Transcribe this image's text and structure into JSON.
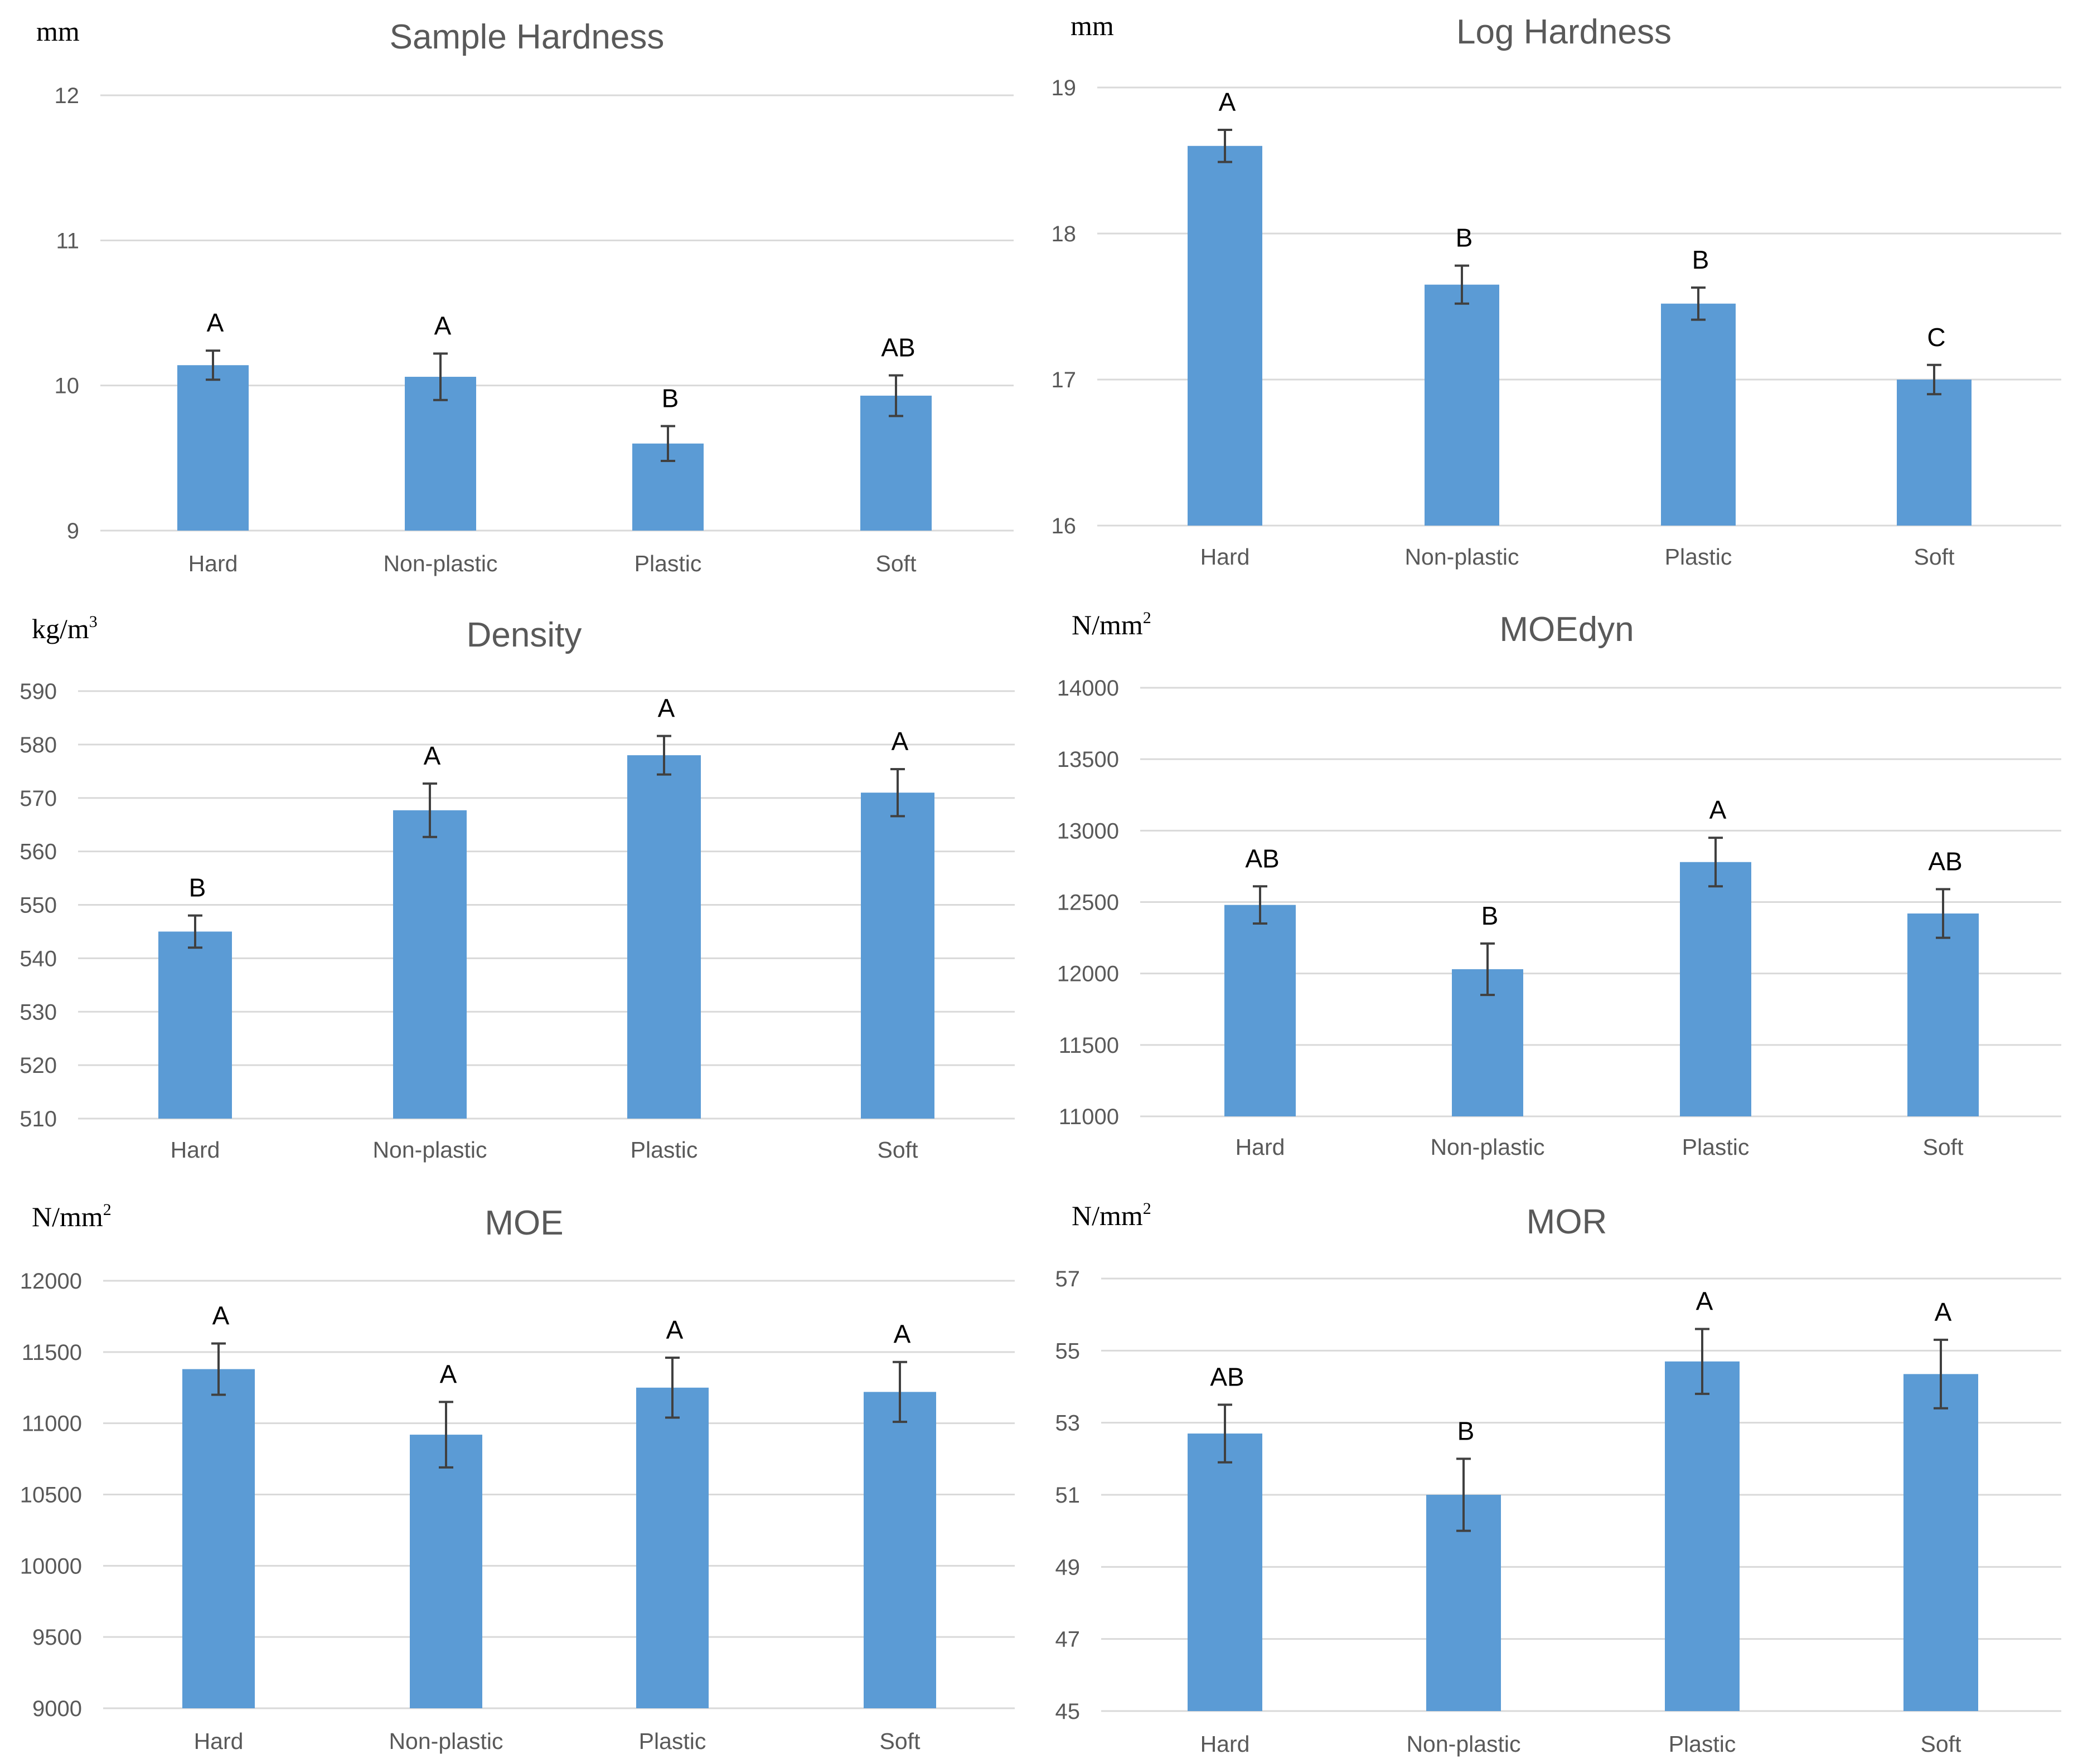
{
  "chart_data": [
    {
      "type": "bar",
      "title": "Sample Hardness",
      "unit": "mm",
      "ylim": [
        9,
        12
      ],
      "yticks": [
        9,
        10,
        11,
        12
      ],
      "categories": [
        "Hard",
        "Non-plastic",
        "Plastic",
        "Soft"
      ],
      "values": [
        10.14,
        10.06,
        9.6,
        9.93
      ],
      "errors": [
        0.1,
        0.16,
        0.12,
        0.14
      ],
      "letters": [
        "A",
        "A",
        "B",
        "AB"
      ]
    },
    {
      "type": "bar",
      "title": "Log Hardness",
      "unit": "mm",
      "ylim": [
        16,
        19
      ],
      "yticks": [
        16,
        17,
        18,
        19
      ],
      "categories": [
        "Hard",
        "Non-plastic",
        "Plastic",
        "Soft"
      ],
      "values": [
        18.6,
        17.65,
        17.52,
        17.0
      ],
      "errors": [
        0.11,
        0.13,
        0.11,
        0.1
      ],
      "letters": [
        "A",
        "B",
        "B",
        "C"
      ]
    },
    {
      "type": "bar",
      "title": "Density",
      "unit": "kg/m",
      "unit_sup": "3",
      "ylim": [
        510,
        590
      ],
      "yticks": [
        510,
        520,
        530,
        540,
        550,
        560,
        570,
        580,
        590
      ],
      "categories": [
        "Hard",
        "Non-plastic",
        "Plastic",
        "Soft"
      ],
      "values": [
        545,
        567.7,
        578,
        571
      ],
      "errors": [
        3,
        5,
        3.6,
        4.4
      ],
      "letters": [
        "B",
        "A",
        "A",
        "A"
      ]
    },
    {
      "type": "bar",
      "title": "MOEdyn",
      "unit": "N/mm",
      "unit_sup": "2",
      "ylim": [
        11000,
        14000
      ],
      "yticks": [
        11000,
        11500,
        12000,
        12500,
        13000,
        13500,
        14000
      ],
      "categories": [
        "Hard",
        "Non-plastic",
        "Plastic",
        "Soft"
      ],
      "values": [
        12480,
        12030,
        12780,
        12420
      ],
      "errors": [
        130,
        180,
        170,
        170
      ],
      "letters": [
        "AB",
        "B",
        "A",
        "AB"
      ]
    },
    {
      "type": "bar",
      "title": "MOE",
      "unit": "N/mm",
      "unit_sup": "2",
      "ylim": [
        9000,
        12000
      ],
      "yticks": [
        9000,
        9500,
        10000,
        10500,
        11000,
        11500,
        12000
      ],
      "categories": [
        "Hard",
        "Non-plastic",
        "Plastic",
        "Soft"
      ],
      "values": [
        11380,
        10920,
        11250,
        11220
      ],
      "errors": [
        180,
        230,
        210,
        210
      ],
      "letters": [
        "A",
        "A",
        "A",
        "A"
      ]
    },
    {
      "type": "bar",
      "title": "MOR",
      "unit": "N/mm",
      "unit_sup": "2",
      "ylim": [
        45,
        57
      ],
      "yticks": [
        45,
        47,
        49,
        51,
        53,
        55,
        57
      ],
      "categories": [
        "Hard",
        "Non-plastic",
        "Plastic",
        "Soft"
      ],
      "values": [
        52.7,
        51.0,
        54.7,
        54.35
      ],
      "errors": [
        0.8,
        1.0,
        0.9,
        0.95
      ],
      "letters": [
        "AB",
        "B",
        "A",
        "A"
      ]
    }
  ]
}
